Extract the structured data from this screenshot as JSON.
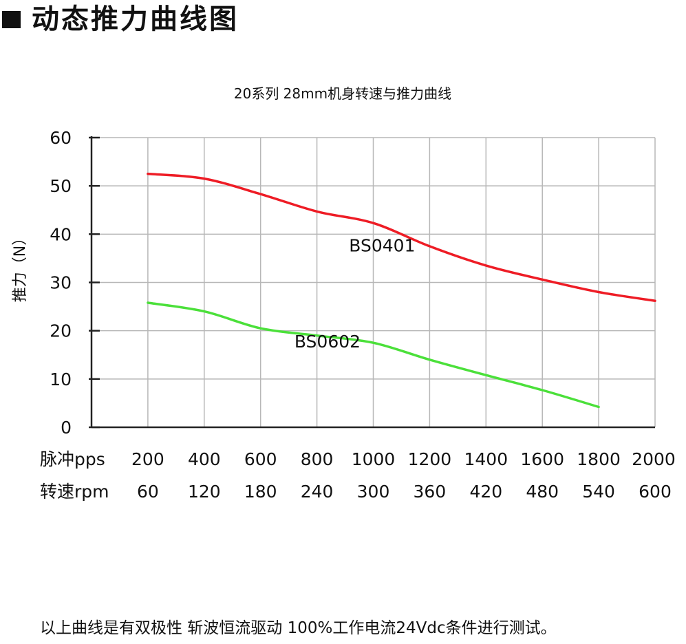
{
  "header": {
    "title": "动态推力曲线图"
  },
  "chart_data": {
    "type": "line",
    "title": "20系列 28mm机身转速与推力曲线",
    "ylabel": "推力（N）",
    "ylim": [
      0,
      60
    ],
    "yticks": [
      "0",
      "10",
      "20",
      "30",
      "40",
      "50",
      "60"
    ],
    "xlim": [
      0,
      2000
    ],
    "x_row_pps_label": "脉冲pps",
    "x_row_pps_ticks": [
      "200",
      "400",
      "600",
      "800",
      "1000",
      "1200",
      "1400",
      "1600",
      "1800",
      "2000"
    ],
    "x_row_rpm_label": "转速rpm",
    "x_row_rpm_ticks": [
      "60",
      "120",
      "180",
      "240",
      "300",
      "360",
      "420",
      "480",
      "540",
      "600"
    ],
    "grid": true,
    "series": [
      {
        "name": "BS0401",
        "color": "#ee1c25",
        "x": [
          200,
          400,
          600,
          800,
          1000,
          1200,
          1400,
          1600,
          1800,
          2000
        ],
        "y": [
          52.5,
          51.5,
          48.3,
          44.7,
          42.3,
          37.5,
          33.5,
          30.6,
          28.0,
          26.2
        ]
      },
      {
        "name": "BS0602",
        "color": "#4be03a",
        "x": [
          200,
          400,
          600,
          800,
          1000,
          1200,
          1400,
          1600,
          1800
        ],
        "y": [
          25.8,
          24.0,
          20.5,
          19.0,
          17.5,
          14.0,
          10.8,
          7.7,
          4.2
        ]
      }
    ]
  },
  "footnote": "以上曲线是有双极性 斩波恒流驱动 100%工作电流24Vdc条件进行测试。"
}
